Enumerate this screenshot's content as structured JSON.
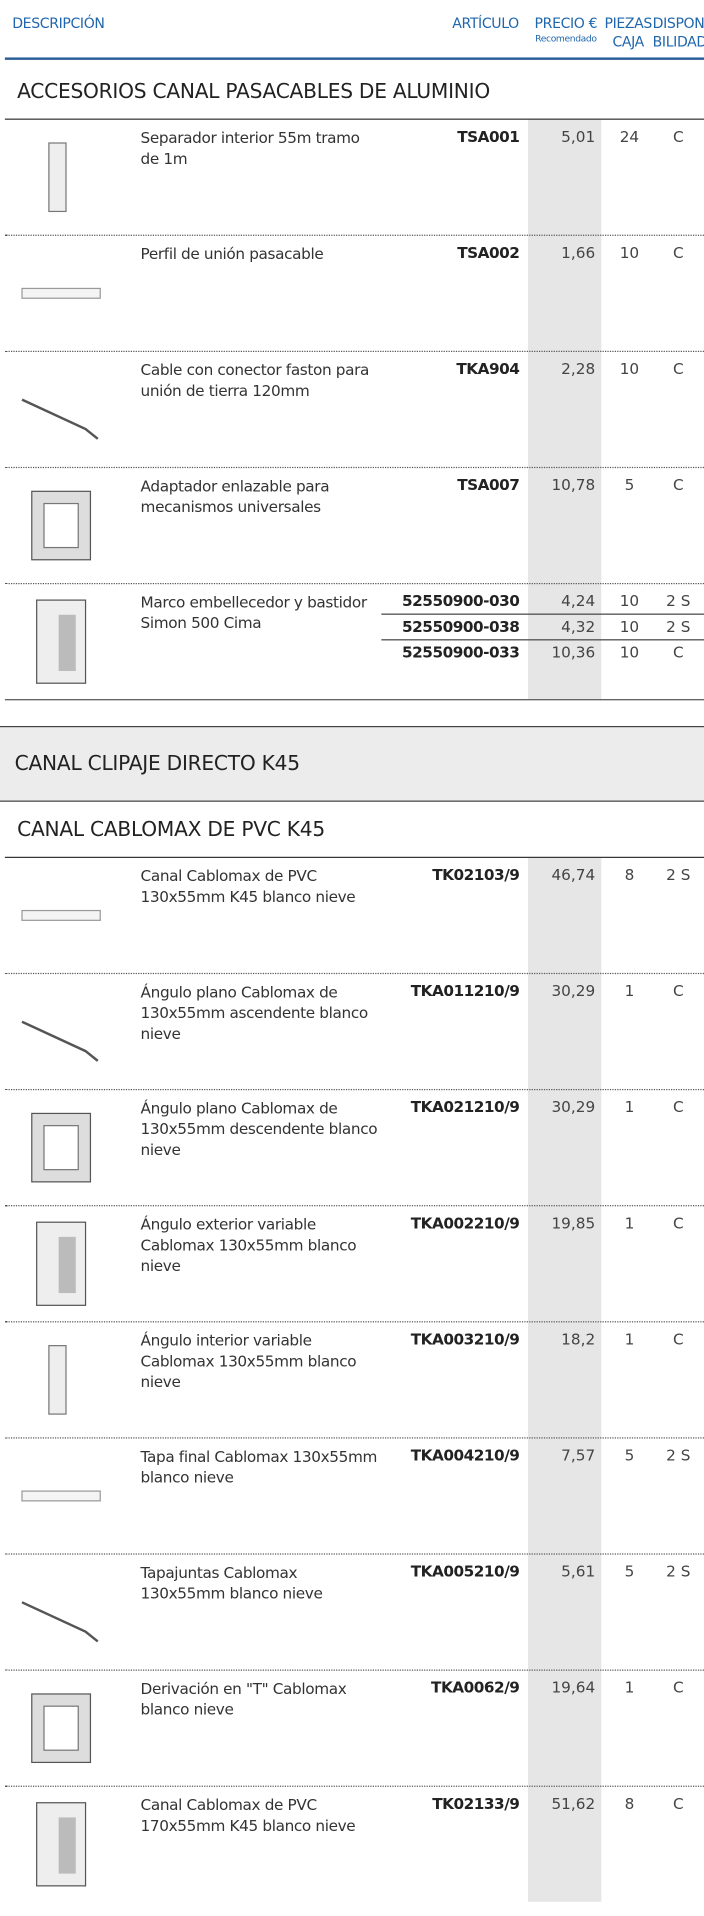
{
  "header": {
    "description": "DESCRIPCIÓN",
    "article": "ARTÍCULO",
    "price": "PRECIO €",
    "price_note": "Recomendado",
    "pieces": [
      "PIEZAS",
      "CAJA"
    ],
    "availability": [
      "DISPONI",
      "BILIDAD"
    ]
  },
  "blocks": [
    {
      "title": "ACCESORIOS CANAL PASACABLES DE ALUMINIO",
      "rows": [
        {
          "description": "Separador interior 55m tramo de 1m",
          "articles": [
            {
              "code": "TSA001",
              "price": "5,01",
              "pieces": 24,
              "availability": "C"
            }
          ]
        },
        {
          "description": "Perfil de unión pasacable",
          "articles": [
            {
              "code": "TSA002",
              "price": "1,66",
              "pieces": 10,
              "availability": "C"
            }
          ]
        },
        {
          "description": "Cable con conector faston para unión de tierra 120mm",
          "articles": [
            {
              "code": "TKA904",
              "price": "2,28",
              "pieces": 10,
              "availability": "C"
            }
          ]
        },
        {
          "description": "Adaptador enlazable para mecanismos universales",
          "articles": [
            {
              "code": "TSA007",
              "price": "10,78",
              "pieces": 5,
              "availability": "C"
            }
          ]
        },
        {
          "description": "Marco embellecedor y bastidor Simon 500 Cima",
          "articles": [
            {
              "code": "52550900-030",
              "price": "4,24",
              "pieces": 10,
              "availability": "2 S"
            },
            {
              "code": "52550900-038",
              "price": "4,32",
              "pieces": 10,
              "availability": "2 S"
            },
            {
              "code": "52550900-033",
              "price": "10,36",
              "pieces": 10,
              "availability": "C"
            }
          ]
        }
      ]
    },
    {
      "band": "CANAL CLIPAJE DIRECTO K45"
    },
    {
      "title": "CANAL CABLOMAX DE PVC K45",
      "rows": [
        {
          "description": "Canal Cablomax de PVC 130x55mm K45 blanco nieve",
          "articles": [
            {
              "code": "TK02103/9",
              "price": "46,74",
              "pieces": 8,
              "availability": "2 S"
            }
          ]
        },
        {
          "description": "Ángulo plano Cablomax de 130x55mm ascendente blanco nieve",
          "articles": [
            {
              "code": "TKA011210/9",
              "price": "30,29",
              "pieces": 1,
              "availability": "C"
            }
          ]
        },
        {
          "description": "Ángulo plano Cablomax de 130x55mm descendente blanco nieve",
          "articles": [
            {
              "code": "TKA021210/9",
              "price": "30,29",
              "pieces": 1,
              "availability": "C"
            }
          ]
        },
        {
          "description": "Ángulo exterior variable Cablomax  130x55mm blanco nieve",
          "articles": [
            {
              "code": "TKA002210/9",
              "price": "19,85",
              "pieces": 1,
              "availability": "C"
            }
          ]
        },
        {
          "description": "Ángulo interior variable Cablomax 130x55mm  blanco nieve",
          "articles": [
            {
              "code": "TKA003210/9",
              "price": "18,2",
              "pieces": 1,
              "availability": "C"
            }
          ]
        },
        {
          "description": "Tapa final Cablomax  130x55mm blanco nieve",
          "articles": [
            {
              "code": "TKA004210/9",
              "price": "7,57",
              "pieces": 5,
              "availability": "2 S"
            }
          ]
        },
        {
          "description": "Tapajuntas Cablomax  130x55mm blanco nieve",
          "articles": [
            {
              "code": "TKA005210/9",
              "price": "5,61",
              "pieces": 5,
              "availability": "2 S"
            }
          ]
        },
        {
          "description": "Derivación en \"T\" Cablomax blanco nieve",
          "articles": [
            {
              "code": "TKA0062/9",
              "price": "19,64",
              "pieces": 1,
              "availability": "C"
            }
          ]
        },
        {
          "description": "Canal Cablomax de PVC 170x55mm K45 blanco nieve",
          "articles": [
            {
              "code": "TK02133/9",
              "price": "51,62",
              "pieces": 8,
              "availability": "C"
            }
          ]
        }
      ]
    }
  ]
}
